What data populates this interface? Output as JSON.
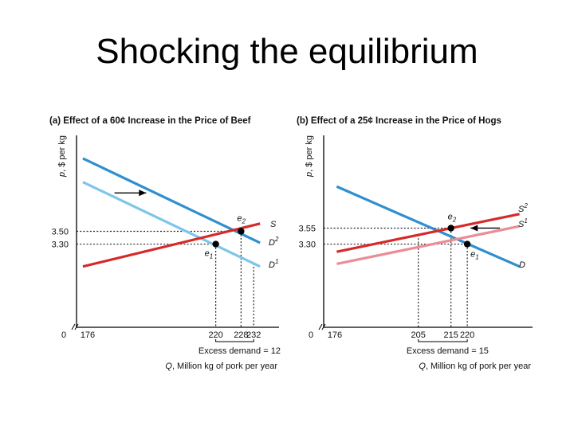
{
  "slide": {
    "title": "Shocking the equilibrium"
  },
  "colors": {
    "demand_dark": "#2f8fcf",
    "demand_light": "#7cc6ea",
    "supply_dark": "#d62a2a",
    "supply_light": "#ea8d97",
    "text": "#111111"
  },
  "chart_data": [
    {
      "type": "line",
      "title": "(a) Effect of a 60¢ Increase in the Price of Beef",
      "xlabel": "Q, Million kg of pork per year",
      "ylabel": "p, $ per kg",
      "origin_label": "0",
      "xlim": [
        176,
        240
      ],
      "ylim": [
        2.0,
        5.0
      ],
      "x_ticks": [
        176,
        220,
        228,
        232
      ],
      "y_ticks": [
        3.3,
        3.5
      ],
      "y_tick_labels": [
        "3.30",
        "3.50"
      ],
      "x_tick_labels": [
        "176",
        "220",
        "228",
        "232"
      ],
      "series": [
        {
          "name": "D2",
          "label_base": "D",
          "label_sup": "2",
          "color": "#2f8fcf",
          "points": [
            [
              178,
              4.64
            ],
            [
              234,
              3.32
            ]
          ]
        },
        {
          "name": "D1",
          "label_base": "D",
          "label_sup": "1",
          "color": "#7cc6ea",
          "points": [
            [
              178,
              4.27
            ],
            [
              234,
              2.95
            ]
          ]
        },
        {
          "name": "S",
          "label_base": "S",
          "label_sup": "",
          "color": "#d62a2a",
          "points": [
            [
              178,
              2.95
            ],
            [
              234,
              3.62
            ]
          ]
        }
      ],
      "equilibria": [
        {
          "name": "e1",
          "label_base": "e",
          "label_sub": "1",
          "x": 220,
          "y": 3.3
        },
        {
          "name": "e2",
          "label_base": "e",
          "label_sub": "2",
          "x": 228,
          "y": 3.5
        }
      ],
      "shift_arrow": {
        "direction": "right",
        "from": [
          188,
          4.1
        ],
        "to": [
          198,
          4.1
        ]
      },
      "annotation": "Excess demand = 12",
      "excess_demand_range": [
        220,
        232
      ]
    },
    {
      "type": "line",
      "title": "(b) Effect of a 25¢ Increase in the Price of Hogs",
      "xlabel": "Q, Million kg of pork per year",
      "ylabel": "p, $ per kg",
      "origin_label": "0",
      "xlim": [
        176,
        240
      ],
      "ylim": [
        2.0,
        5.0
      ],
      "x_ticks": [
        176,
        205,
        215,
        220
      ],
      "y_ticks": [
        3.3,
        3.55
      ],
      "y_tick_labels": [
        "3.30",
        "3.55"
      ],
      "x_tick_labels": [
        "176",
        "205",
        "215",
        "220"
      ],
      "series": [
        {
          "name": "D",
          "label_base": "D",
          "label_sup": "",
          "color": "#2f8fcf",
          "points": [
            [
              180,
              4.2
            ],
            [
              236,
              2.95
            ]
          ]
        },
        {
          "name": "S2",
          "label_base": "S",
          "label_sup": "2",
          "color": "#d62a2a",
          "points": [
            [
              180,
              3.18
            ],
            [
              236,
              3.77
            ]
          ]
        },
        {
          "name": "S1",
          "label_base": "S",
          "label_sup": "1",
          "color": "#ea8d97",
          "points": [
            [
              180,
              2.99
            ],
            [
              236,
              3.58
            ]
          ]
        }
      ],
      "equilibria": [
        {
          "name": "e2",
          "label_base": "e",
          "label_sub": "2",
          "x": 215,
          "y": 3.55
        },
        {
          "name": "e1",
          "label_base": "e",
          "label_sub": "1",
          "x": 220,
          "y": 3.3
        }
      ],
      "shift_arrow": {
        "direction": "left",
        "from": [
          230,
          3.55
        ],
        "to": [
          221,
          3.55
        ]
      },
      "annotation": "Excess demand = 15",
      "excess_demand_range": [
        205,
        220
      ]
    }
  ]
}
